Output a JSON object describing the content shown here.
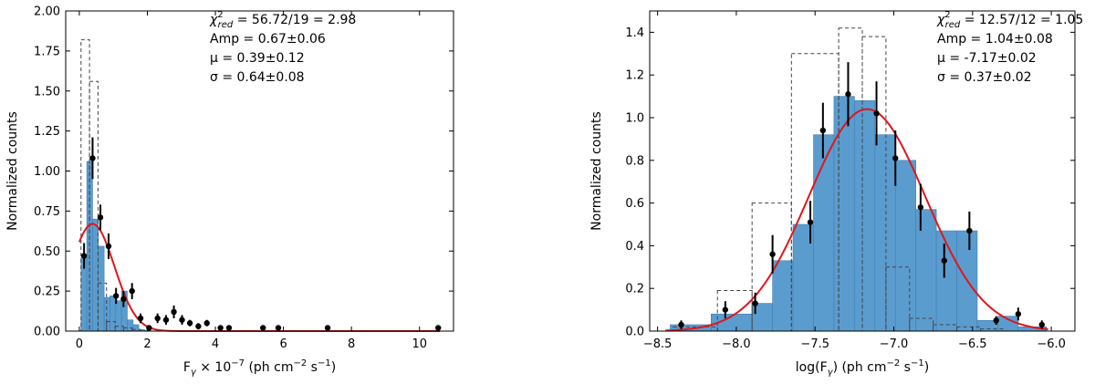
{
  "chart_data": [
    {
      "type": "bar",
      "xlabel": "F",
      "xlabel_sub": "γ",
      "xlabel_mid": " × 10",
      "xlabel_exp": "−7",
      "xlabel_tail_a": " (ph cm",
      "xlabel_tail_exp1": "−2",
      "xlabel_tail_b": " s",
      "xlabel_tail_exp2": "−1",
      "xlabel_tail_c": ")",
      "ylabel": "Normalized counts",
      "xlim": [
        -0.4,
        11.0
      ],
      "ylim": [
        0,
        2.0
      ],
      "xticks": [
        0,
        2,
        4,
        6,
        8,
        10
      ],
      "xtick_labels": [
        "0",
        "2",
        "4",
        "6",
        "8",
        "10"
      ],
      "yticks": [
        0,
        0.25,
        0.5,
        0.75,
        1.0,
        1.25,
        1.5,
        1.75,
        2.0
      ],
      "ytick_labels": [
        "0.00",
        "0.25",
        "0.50",
        "0.75",
        "1.00",
        "1.25",
        "1.50",
        "1.75",
        "2.00"
      ],
      "annotations": {
        "chi_main": "χ",
        "chi_sup": "2",
        "chi_sub": "red",
        "chi_value": " = 56.72/19 = 2.98",
        "amp": "Amp = 0.67±0.06",
        "mu": "μ = 0.39±0.12",
        "sigma": "σ = 0.64±0.08"
      },
      "filled_hist": {
        "edges": [
          0.05,
          0.22,
          0.39,
          0.56,
          0.73,
          0.9,
          1.07,
          1.24,
          1.41,
          1.58,
          1.75,
          1.92,
          2.09,
          2.26
        ],
        "values": [
          0.46,
          1.06,
          0.7,
          0.53,
          0.21,
          0.22,
          0.19,
          0.25,
          0.07,
          0.04,
          0.01,
          0.005,
          0.0
        ]
      },
      "dashed_hist": {
        "edges": [
          0.05,
          0.3,
          0.55,
          0.8,
          1.05,
          1.3,
          1.55,
          1.8,
          2.05
        ],
        "values": [
          1.82,
          1.56,
          0.3,
          0.06,
          0.03,
          0.02,
          0.01,
          0.0
        ]
      },
      "points": [
        {
          "x": 0.14,
          "y": 0.47,
          "err": 0.08
        },
        {
          "x": 0.39,
          "y": 1.08,
          "err": 0.13
        },
        {
          "x": 0.62,
          "y": 0.71,
          "err": 0.08
        },
        {
          "x": 0.86,
          "y": 0.53,
          "err": 0.08
        },
        {
          "x": 1.08,
          "y": 0.22,
          "err": 0.05
        },
        {
          "x": 1.3,
          "y": 0.2,
          "err": 0.05
        },
        {
          "x": 1.55,
          "y": 0.25,
          "err": 0.05
        },
        {
          "x": 1.8,
          "y": 0.08,
          "err": 0.03
        },
        {
          "x": 2.05,
          "y": 0.02,
          "err": 0.01
        },
        {
          "x": 2.3,
          "y": 0.08,
          "err": 0.03
        },
        {
          "x": 2.55,
          "y": 0.07,
          "err": 0.03
        },
        {
          "x": 2.78,
          "y": 0.12,
          "err": 0.04
        },
        {
          "x": 3.02,
          "y": 0.07,
          "err": 0.03
        },
        {
          "x": 3.25,
          "y": 0.05,
          "err": 0.02
        },
        {
          "x": 3.5,
          "y": 0.03,
          "err": 0.02
        },
        {
          "x": 3.75,
          "y": 0.05,
          "err": 0.02
        },
        {
          "x": 4.15,
          "y": 0.02,
          "err": 0.01
        },
        {
          "x": 4.4,
          "y": 0.02,
          "err": 0.01
        },
        {
          "x": 5.4,
          "y": 0.02,
          "err": 0.01
        },
        {
          "x": 5.85,
          "y": 0.02,
          "err": 0.01
        },
        {
          "x": 7.3,
          "y": 0.02,
          "err": 0.01
        },
        {
          "x": 10.55,
          "y": 0.02,
          "err": 0.01
        }
      ],
      "fit": {
        "amp": 0.67,
        "mu": 0.39,
        "sigma": 0.64,
        "x_range": [
          0.0,
          10.6
        ]
      }
    },
    {
      "type": "bar",
      "xlabel": "log(F",
      "xlabel_sub": "γ",
      "xlabel_mid": ") (ph cm",
      "xlabel_exp": "−2",
      "xlabel_tail_a": " s",
      "xlabel_tail_exp1": "−1",
      "xlabel_tail_b": ")",
      "xlabel_tail_exp2": "",
      "xlabel_tail_c": "",
      "ylabel": "Normalized counts",
      "xlim": [
        -8.55,
        -5.85
      ],
      "ylim": [
        0,
        1.5
      ],
      "xticks": [
        -8.5,
        -8.0,
        -7.5,
        -7.0,
        -6.5,
        -6.0
      ],
      "xtick_labels": [
        "−8.5",
        "−8.0",
        "−7.5",
        "−7.0",
        "−6.5",
        "−6.0"
      ],
      "yticks": [
        0,
        0.2,
        0.4,
        0.6,
        0.8,
        1.0,
        1.2,
        1.4
      ],
      "ytick_labels": [
        "0.0",
        "0.2",
        "0.4",
        "0.6",
        "0.8",
        "1.0",
        "1.2",
        "1.4"
      ],
      "annotations": {
        "chi_main": "χ",
        "chi_sup": "2",
        "chi_sub": "red",
        "chi_value": " = 12.57/12 = 1.05",
        "amp": "Amp = 1.04±0.08",
        "mu": "μ = -7.17±0.02",
        "sigma": "σ = 0.37±0.02"
      },
      "filled_hist": {
        "edges": [
          -8.42,
          -8.16,
          -7.9,
          -7.77,
          -7.64,
          -7.51,
          -7.38,
          -7.25,
          -7.12,
          -6.99,
          -6.86,
          -6.73,
          -6.6,
          -6.47,
          -6.34,
          -6.21,
          -6.03
        ],
        "values": [
          0.03,
          0.08,
          0.13,
          0.33,
          0.5,
          0.92,
          1.1,
          1.08,
          0.92,
          0.8,
          0.57,
          0.47,
          0.47,
          0.05,
          0.07,
          0.02
        ]
      },
      "dashed_hist": {
        "edges": [
          -8.4,
          -8.12,
          -7.9,
          -7.65,
          -7.35,
          -7.2,
          -7.05,
          -6.9,
          -6.75,
          -6.6,
          -6.45,
          -6.3
        ],
        "values": [
          0.02,
          0.19,
          0.6,
          1.3,
          1.42,
          1.38,
          0.3,
          0.06,
          0.03,
          0.02,
          0.01
        ]
      },
      "points": [
        {
          "x": -8.35,
          "y": 0.03,
          "err": 0.02
        },
        {
          "x": -8.07,
          "y": 0.1,
          "err": 0.04
        },
        {
          "x": -7.88,
          "y": 0.13,
          "err": 0.05
        },
        {
          "x": -7.77,
          "y": 0.36,
          "err": 0.09
        },
        {
          "x": -7.53,
          "y": 0.51,
          "err": 0.1
        },
        {
          "x": -7.45,
          "y": 0.94,
          "err": 0.13
        },
        {
          "x": -7.29,
          "y": 1.11,
          "err": 0.15
        },
        {
          "x": -7.11,
          "y": 1.02,
          "err": 0.15
        },
        {
          "x": -6.99,
          "y": 0.81,
          "err": 0.13
        },
        {
          "x": -6.83,
          "y": 0.58,
          "err": 0.11
        },
        {
          "x": -6.68,
          "y": 0.33,
          "err": 0.08
        },
        {
          "x": -6.52,
          "y": 0.47,
          "err": 0.09
        },
        {
          "x": -6.35,
          "y": 0.05,
          "err": 0.02
        },
        {
          "x": -6.21,
          "y": 0.08,
          "err": 0.03
        },
        {
          "x": -6.06,
          "y": 0.03,
          "err": 0.02
        }
      ],
      "fit": {
        "amp": 1.04,
        "mu": -7.17,
        "sigma": 0.37,
        "x_range": [
          -8.45,
          -6.02
        ]
      }
    }
  ]
}
